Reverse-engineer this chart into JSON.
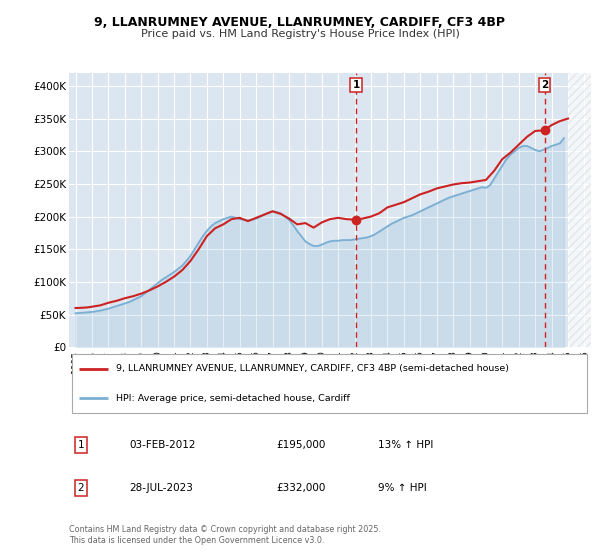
{
  "title1": "9, LLANRUMNEY AVENUE, LLANRUMNEY, CARDIFF, CF3 4BP",
  "title2": "Price paid vs. HM Land Registry's House Price Index (HPI)",
  "background_color": "#ffffff",
  "plot_bg_color": "#dce6f0",
  "grid_color": "#ffffff",
  "ylabel_ticks": [
    "£0",
    "£50K",
    "£100K",
    "£150K",
    "£200K",
    "£250K",
    "£300K",
    "£350K",
    "£400K"
  ],
  "ytick_vals": [
    0,
    50000,
    100000,
    150000,
    200000,
    250000,
    300000,
    350000,
    400000
  ],
  "ylim": [
    0,
    420000
  ],
  "xlim_start": 1994.6,
  "xlim_end": 2026.4,
  "sale1_x": 2012.09,
  "sale1_y": 195000,
  "sale2_x": 2023.57,
  "sale2_y": 332000,
  "sale1_label": "1",
  "sale2_label": "2",
  "red_line_color": "#cc2222",
  "blue_line_color": "#7aafd4",
  "marker_color": "#cc2222",
  "vline_color": "#cc2222",
  "legend1_label": "9, LLANRUMNEY AVENUE, LLANRUMNEY, CARDIFF, CF3 4BP (semi-detached house)",
  "legend2_label": "HPI: Average price, semi-detached house, Cardiff",
  "annot1_date": "03-FEB-2012",
  "annot1_price": "£195,000",
  "annot1_hpi": "13% ↑ HPI",
  "annot2_date": "28-JUL-2023",
  "annot2_price": "£332,000",
  "annot2_hpi": "9% ↑ HPI",
  "footer": "Contains HM Land Registry data © Crown copyright and database right 2025.\nThis data is licensed under the Open Government Licence v3.0.",
  "hpi_series_x": [
    1995.0,
    1995.25,
    1995.5,
    1995.75,
    1996.0,
    1996.25,
    1996.5,
    1996.75,
    1997.0,
    1997.25,
    1997.5,
    1997.75,
    1998.0,
    1998.25,
    1998.5,
    1998.75,
    1999.0,
    1999.25,
    1999.5,
    1999.75,
    2000.0,
    2000.25,
    2000.5,
    2000.75,
    2001.0,
    2001.25,
    2001.5,
    2001.75,
    2002.0,
    2002.25,
    2002.5,
    2002.75,
    2003.0,
    2003.25,
    2003.5,
    2003.75,
    2004.0,
    2004.25,
    2004.5,
    2004.75,
    2005.0,
    2005.25,
    2005.5,
    2005.75,
    2006.0,
    2006.25,
    2006.5,
    2006.75,
    2007.0,
    2007.25,
    2007.5,
    2007.75,
    2008.0,
    2008.25,
    2008.5,
    2008.75,
    2009.0,
    2009.25,
    2009.5,
    2009.75,
    2010.0,
    2010.25,
    2010.5,
    2010.75,
    2011.0,
    2011.25,
    2011.5,
    2011.75,
    2012.0,
    2012.25,
    2012.5,
    2012.75,
    2013.0,
    2013.25,
    2013.5,
    2013.75,
    2014.0,
    2014.25,
    2014.5,
    2014.75,
    2015.0,
    2015.25,
    2015.5,
    2015.75,
    2016.0,
    2016.25,
    2016.5,
    2016.75,
    2017.0,
    2017.25,
    2017.5,
    2017.75,
    2018.0,
    2018.25,
    2018.5,
    2018.75,
    2019.0,
    2019.25,
    2019.5,
    2019.75,
    2020.0,
    2020.25,
    2020.5,
    2020.75,
    2021.0,
    2021.25,
    2021.5,
    2021.75,
    2022.0,
    2022.25,
    2022.5,
    2022.75,
    2023.0,
    2023.25,
    2023.5,
    2023.75,
    2024.0,
    2024.25,
    2024.5,
    2024.75
  ],
  "hpi_series_y": [
    52000,
    52500,
    53000,
    53500,
    54000,
    55000,
    56000,
    57500,
    59000,
    61000,
    63000,
    65000,
    67000,
    69000,
    72000,
    75000,
    78000,
    83000,
    88000,
    93000,
    98000,
    103000,
    107000,
    111000,
    115000,
    120000,
    125000,
    132000,
    140000,
    150000,
    160000,
    170000,
    178000,
    185000,
    190000,
    193000,
    196000,
    198000,
    200000,
    198000,
    196000,
    195000,
    194000,
    195000,
    197000,
    200000,
    203000,
    206000,
    208000,
    207000,
    205000,
    200000,
    195000,
    187000,
    178000,
    170000,
    162000,
    158000,
    155000,
    155000,
    157000,
    160000,
    162000,
    163000,
    163000,
    164000,
    164000,
    164000,
    165000,
    166000,
    167000,
    168000,
    170000,
    173000,
    177000,
    181000,
    185000,
    189000,
    192000,
    195000,
    198000,
    200000,
    202000,
    205000,
    208000,
    211000,
    214000,
    217000,
    220000,
    223000,
    226000,
    229000,
    231000,
    233000,
    235000,
    237000,
    239000,
    241000,
    243000,
    245000,
    244000,
    248000,
    258000,
    268000,
    278000,
    288000,
    295000,
    300000,
    305000,
    308000,
    308000,
    305000,
    302000,
    300000,
    302000,
    305000,
    308000,
    310000,
    312000,
    320000
  ],
  "price_series_x": [
    1995.0,
    1995.25,
    1995.5,
    1995.75,
    1996.0,
    1996.5,
    1997.0,
    1997.5,
    1998.0,
    1998.5,
    1999.0,
    1999.5,
    2000.0,
    2000.5,
    2001.0,
    2001.5,
    2002.0,
    2002.5,
    2003.0,
    2003.5,
    2004.0,
    2004.5,
    2005.0,
    2005.5,
    2006.0,
    2006.5,
    2007.0,
    2007.5,
    2008.0,
    2008.5,
    2009.0,
    2009.5,
    2010.0,
    2010.5,
    2011.0,
    2011.5,
    2012.09,
    2012.5,
    2013.0,
    2013.5,
    2014.0,
    2014.5,
    2015.0,
    2015.5,
    2016.0,
    2016.5,
    2017.0,
    2017.5,
    2018.0,
    2018.5,
    2019.0,
    2019.5,
    2020.0,
    2020.5,
    2021.0,
    2021.5,
    2022.0,
    2022.5,
    2023.0,
    2023.57,
    2024.0,
    2024.5,
    2025.0
  ],
  "price_series_y": [
    60000,
    60200,
    60500,
    61000,
    62000,
    64000,
    68000,
    71000,
    75000,
    78000,
    82000,
    87000,
    93000,
    100000,
    108000,
    118000,
    132000,
    150000,
    170000,
    182000,
    188000,
    196000,
    198000,
    193000,
    198000,
    203000,
    208000,
    204000,
    197000,
    188000,
    190000,
    183000,
    191000,
    196000,
    198000,
    196000,
    195000,
    197000,
    200000,
    205000,
    214000,
    218000,
    222000,
    228000,
    234000,
    238000,
    243000,
    246000,
    249000,
    251000,
    252000,
    254000,
    256000,
    270000,
    288000,
    298000,
    310000,
    322000,
    331000,
    332000,
    340000,
    346000,
    350000
  ]
}
